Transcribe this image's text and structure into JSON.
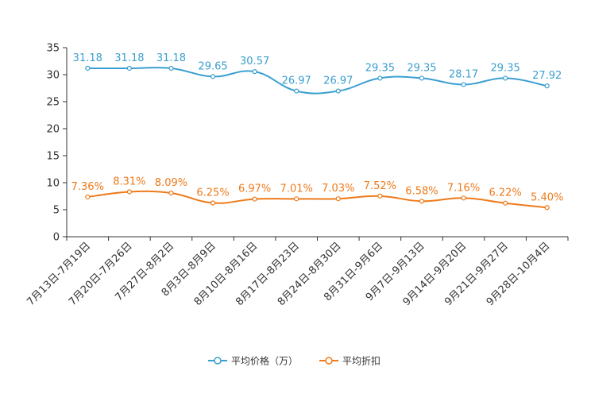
{
  "chart_data": {
    "type": "line",
    "categories": [
      "7月13日-7月19日",
      "7月20日-7月26日",
      "7月27日-8月2日",
      "8月3日-8月9日",
      "8月10日-8月16日",
      "8月17日-8月23日",
      "8月24日-8月30日",
      "8月31日-9月6日",
      "9月7日-9月13日",
      "9月14日-9月20日",
      "9月21日-9月27日",
      "9月28日-10月4日"
    ],
    "series": [
      {
        "name": "平均价格（万）",
        "values": [
          31.18,
          31.18,
          31.18,
          29.65,
          30.57,
          26.97,
          26.97,
          29.35,
          29.35,
          28.17,
          29.35,
          27.92
        ],
        "labels": [
          "31.18",
          "31.18",
          "31.18",
          "29.65",
          "30.57",
          "26.97",
          "26.97",
          "29.35",
          "29.35",
          "28.17",
          "29.35",
          "27.92"
        ],
        "color": "#3a9fd0"
      },
      {
        "name": "平均折扣",
        "values": [
          7.36,
          8.31,
          8.09,
          6.25,
          6.97,
          7.01,
          7.03,
          7.52,
          6.58,
          7.16,
          6.22,
          5.4
        ],
        "labels": [
          "7.36%",
          "8.31%",
          "8.09%",
          "6.25%",
          "6.97%",
          "7.01%",
          "7.03%",
          "7.52%",
          "6.58%",
          "7.16%",
          "6.22%",
          "5.40%"
        ],
        "color": "#ee7a1a"
      }
    ],
    "yticks": [
      0,
      5,
      10,
      15,
      20,
      25,
      30,
      35
    ],
    "ylim": [
      0,
      35
    ],
    "legend_position": "bottom-center",
    "grid": false
  }
}
